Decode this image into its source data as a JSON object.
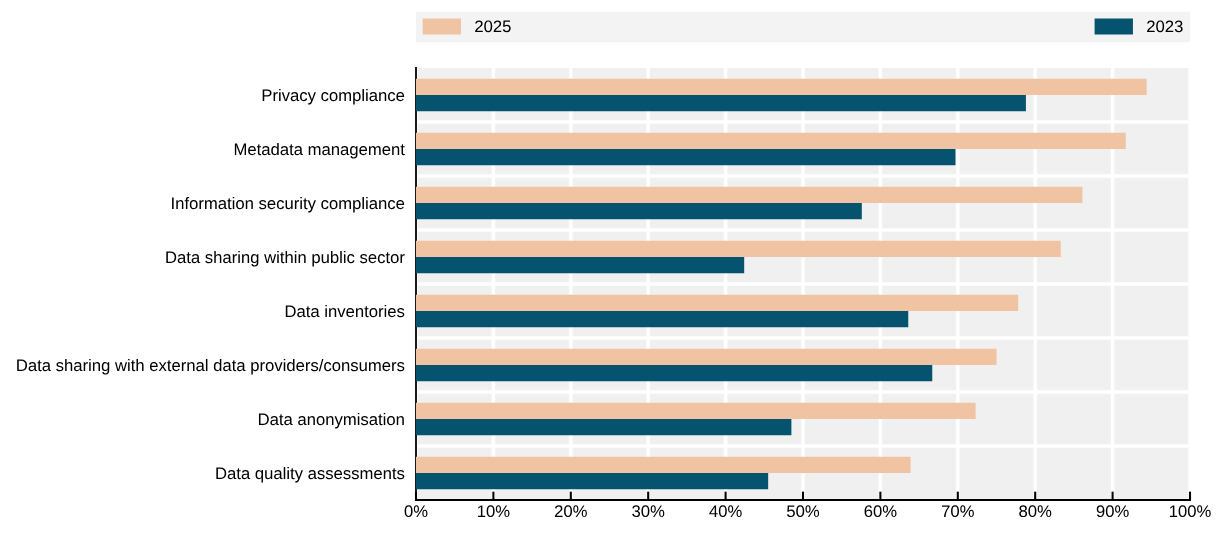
{
  "chart_data": {
    "type": "bar",
    "orientation": "horizontal",
    "categories": [
      "Privacy compliance",
      "Metadata management",
      "Information security compliance",
      "Data sharing within public sector",
      "Data inventories",
      "Data sharing with external data providers/consumers",
      "Data anonymisation",
      "Data quality assessments"
    ],
    "series": [
      {
        "name": "2025",
        "color": "#f0c3a2",
        "values": [
          94.4,
          91.7,
          86.1,
          83.3,
          77.8,
          75.0,
          72.3,
          63.9
        ]
      },
      {
        "name": "2023",
        "color": "#05536e",
        "values": [
          78.8,
          69.7,
          57.6,
          42.4,
          63.6,
          66.7,
          48.5,
          45.5
        ]
      }
    ],
    "xlim": [
      0,
      100
    ],
    "xticks": [
      {
        "value": 0,
        "label": "0%"
      },
      {
        "value": 10,
        "label": "10%"
      },
      {
        "value": 20,
        "label": "20%"
      },
      {
        "value": 30,
        "label": "30%"
      },
      {
        "value": 40,
        "label": "40%"
      },
      {
        "value": 50,
        "label": "50%"
      },
      {
        "value": 60,
        "label": "60%"
      },
      {
        "value": 70,
        "label": "70%"
      },
      {
        "value": 80,
        "label": "80%"
      },
      {
        "value": 90,
        "label": "90%"
      },
      {
        "value": 100,
        "label": "100%"
      }
    ],
    "grid": true,
    "legend": "top"
  }
}
